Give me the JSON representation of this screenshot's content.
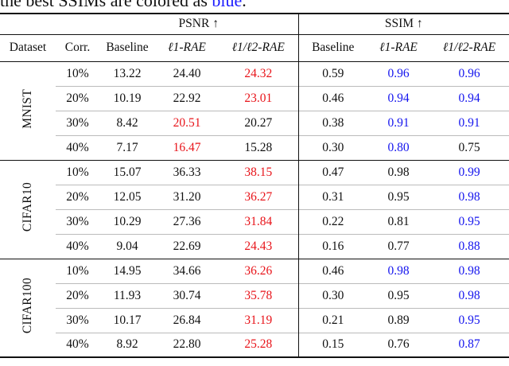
{
  "caption": {
    "prefix": "the best SSIMs are colored as ",
    "highlight": "blue",
    "suffix": "."
  },
  "group_headers": {
    "psnr": "PSNR ↑",
    "ssim": "SSIM ↑"
  },
  "column_headers": {
    "dataset": "Dataset",
    "corr": "Corr.",
    "psnr_baseline": "Baseline",
    "psnr_l1": "ℓ1-RAE",
    "psnr_l1l2": "ℓ1/ℓ2-RAE",
    "ssim_baseline": "Baseline",
    "ssim_l1": "ℓ1-RAE",
    "ssim_l1l2": "ℓ1/ℓ2-RAE"
  },
  "colors": {
    "red": "#e8141a",
    "blue": "#1414ee"
  },
  "datasets": [
    {
      "name": "MNIST",
      "rows": [
        {
          "corr": "10%",
          "psnr": [
            "13.22",
            "24.40",
            "24.32"
          ],
          "ssim": [
            "0.59",
            "0.96",
            "0.96"
          ],
          "psnr_hl": [
            null,
            null,
            "red"
          ],
          "ssim_hl": [
            null,
            "blue",
            "blue"
          ]
        },
        {
          "corr": "20%",
          "psnr": [
            "10.19",
            "22.92",
            "23.01"
          ],
          "ssim": [
            "0.46",
            "0.94",
            "0.94"
          ],
          "psnr_hl": [
            null,
            null,
            "red"
          ],
          "ssim_hl": [
            null,
            "blue",
            "blue"
          ]
        },
        {
          "corr": "30%",
          "psnr": [
            "8.42",
            "20.51",
            "20.27"
          ],
          "ssim": [
            "0.38",
            "0.91",
            "0.91"
          ],
          "psnr_hl": [
            null,
            "red",
            null
          ],
          "ssim_hl": [
            null,
            "blue",
            "blue"
          ]
        },
        {
          "corr": "40%",
          "psnr": [
            "7.17",
            "16.47",
            "15.28"
          ],
          "ssim": [
            "0.30",
            "0.80",
            "0.75"
          ],
          "psnr_hl": [
            null,
            "red",
            null
          ],
          "ssim_hl": [
            null,
            "blue",
            null
          ]
        }
      ]
    },
    {
      "name": "CIFAR10",
      "rows": [
        {
          "corr": "10%",
          "psnr": [
            "15.07",
            "36.33",
            "38.15"
          ],
          "ssim": [
            "0.47",
            "0.98",
            "0.99"
          ],
          "psnr_hl": [
            null,
            null,
            "red"
          ],
          "ssim_hl": [
            null,
            null,
            "blue"
          ]
        },
        {
          "corr": "20%",
          "psnr": [
            "12.05",
            "31.20",
            "36.27"
          ],
          "ssim": [
            "0.31",
            "0.95",
            "0.98"
          ],
          "psnr_hl": [
            null,
            null,
            "red"
          ],
          "ssim_hl": [
            null,
            null,
            "blue"
          ]
        },
        {
          "corr": "30%",
          "psnr": [
            "10.29",
            "27.36",
            "31.84"
          ],
          "ssim": [
            "0.22",
            "0.81",
            "0.95"
          ],
          "psnr_hl": [
            null,
            null,
            "red"
          ],
          "ssim_hl": [
            null,
            null,
            "blue"
          ]
        },
        {
          "corr": "40%",
          "psnr": [
            "9.04",
            "22.69",
            "24.43"
          ],
          "ssim": [
            "0.16",
            "0.77",
            "0.88"
          ],
          "psnr_hl": [
            null,
            null,
            "red"
          ],
          "ssim_hl": [
            null,
            null,
            "blue"
          ]
        }
      ]
    },
    {
      "name": "CIFAR100",
      "rows": [
        {
          "corr": "10%",
          "psnr": [
            "14.95",
            "34.66",
            "36.26"
          ],
          "ssim": [
            "0.46",
            "0.98",
            "0.98"
          ],
          "psnr_hl": [
            null,
            null,
            "red"
          ],
          "ssim_hl": [
            null,
            "blue",
            "blue"
          ]
        },
        {
          "corr": "20%",
          "psnr": [
            "11.93",
            "30.74",
            "35.78"
          ],
          "ssim": [
            "0.30",
            "0.95",
            "0.98"
          ],
          "psnr_hl": [
            null,
            null,
            "red"
          ],
          "ssim_hl": [
            null,
            null,
            "blue"
          ]
        },
        {
          "corr": "30%",
          "psnr": [
            "10.17",
            "26.84",
            "31.19"
          ],
          "ssim": [
            "0.21",
            "0.89",
            "0.95"
          ],
          "psnr_hl": [
            null,
            null,
            "red"
          ],
          "ssim_hl": [
            null,
            null,
            "blue"
          ]
        },
        {
          "corr": "40%",
          "psnr": [
            "8.92",
            "22.80",
            "25.28"
          ],
          "ssim": [
            "0.15",
            "0.76",
            "0.87"
          ],
          "psnr_hl": [
            null,
            null,
            "red"
          ],
          "ssim_hl": [
            null,
            null,
            "blue"
          ]
        }
      ]
    }
  ]
}
